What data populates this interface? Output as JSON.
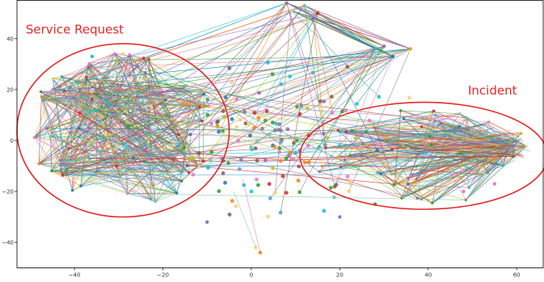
{
  "chart_data": {
    "type": "scatter",
    "title": "",
    "xlabel": "",
    "ylabel": "",
    "xlim": [
      -53,
      66
    ],
    "ylim": [
      -50,
      55
    ],
    "x_ticks": [
      -40,
      -20,
      0,
      20,
      40,
      60
    ],
    "y_ticks": [
      -40,
      -20,
      0,
      20,
      40
    ],
    "grid": false,
    "legend": "none",
    "clusters": [
      {
        "name": "Service Request",
        "center": [
          -29,
          4
        ],
        "radius_x": 24,
        "radius_y": 34
      },
      {
        "name": "Incident",
        "center": [
          39,
          -6
        ],
        "radius_x": 28,
        "radius_y": 21
      }
    ],
    "scattered_region": {
      "center": [
        6,
        0
      ],
      "spread": [
        14,
        16
      ]
    },
    "outlier_points": [
      [
        8,
        54
      ],
      [
        12,
        53
      ],
      [
        15,
        50
      ],
      [
        14,
        48
      ],
      [
        9,
        51
      ],
      [
        30,
        37
      ],
      [
        28,
        36
      ],
      [
        32,
        33
      ],
      [
        36,
        36
      ],
      [
        1,
        -42
      ],
      [
        2,
        -44
      ],
      [
        -29,
        34
      ],
      [
        -36,
        33
      ],
      [
        20,
        -30
      ],
      [
        28,
        -25
      ],
      [
        48,
        -20
      ],
      [
        55,
        -17
      ],
      [
        -10,
        -32
      ]
    ],
    "annotations": [
      {
        "text": "Service Request",
        "x": -51,
        "y": 42
      },
      {
        "text": "Incident",
        "x": 49,
        "y": 18
      }
    ],
    "colors": [
      "#1f77b4",
      "#ff7f0e",
      "#2ca02c",
      "#d62728",
      "#9467bd",
      "#8c564b",
      "#e377c2",
      "#7f7f7f",
      "#bcbd22",
      "#17becf",
      "#4e9fcf",
      "#f4d06f",
      "#73c9a1"
    ],
    "annotation_color": "#e32a2a"
  }
}
